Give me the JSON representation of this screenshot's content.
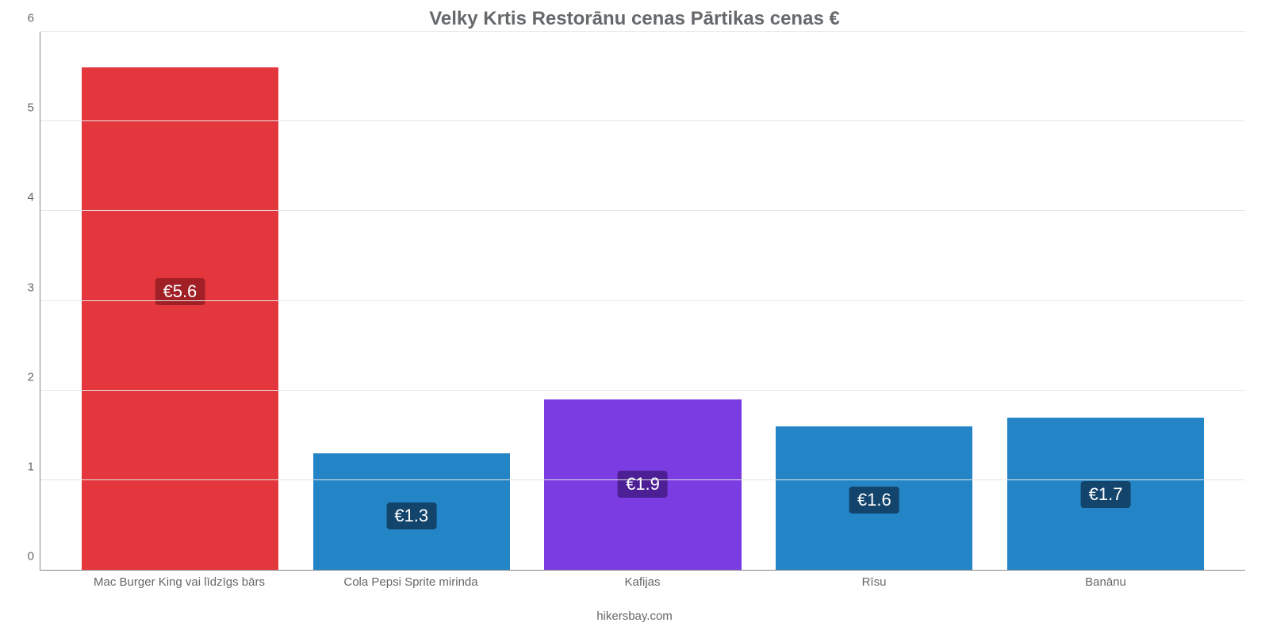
{
  "chart": {
    "type": "bar",
    "title": "Velky Krtis Restorānu cenas Pārtikas cenas €",
    "title_fontsize": 24,
    "title_color": "#66696c",
    "categories": [
      "Mac Burger King vai līdzīgs bārs",
      "Cola Pepsi Sprite mirinda",
      "Kafijas",
      "Rīsu",
      "Banānu"
    ],
    "values": [
      5.6,
      1.3,
      1.9,
      1.6,
      1.7
    ],
    "value_labels": [
      "€5.6",
      "€1.3",
      "€1.9",
      "€1.6",
      "€1.7"
    ],
    "bar_colors": [
      "#e4373d",
      "#2385c6",
      "#7b3ce2",
      "#2385c6",
      "#2385c6"
    ],
    "badge_colors": [
      "#a02026",
      "#13446c",
      "#4c2094",
      "#13446c",
      "#13446c"
    ],
    "ylim": [
      0,
      6
    ],
    "ytick_step": 1,
    "ytick_labels": [
      "0",
      "1",
      "2",
      "3",
      "4",
      "5",
      "6"
    ],
    "grid_color": "#e6e6e6",
    "axis_color": "#888888",
    "background_color": "#ffffff",
    "bar_width_pct": 85,
    "label_fontsize": 15,
    "tick_fontsize": 15,
    "value_fontsize": 22,
    "value_label_top_pct": 42,
    "credit": "hikersbay.com",
    "credit_fontsize": 15
  }
}
